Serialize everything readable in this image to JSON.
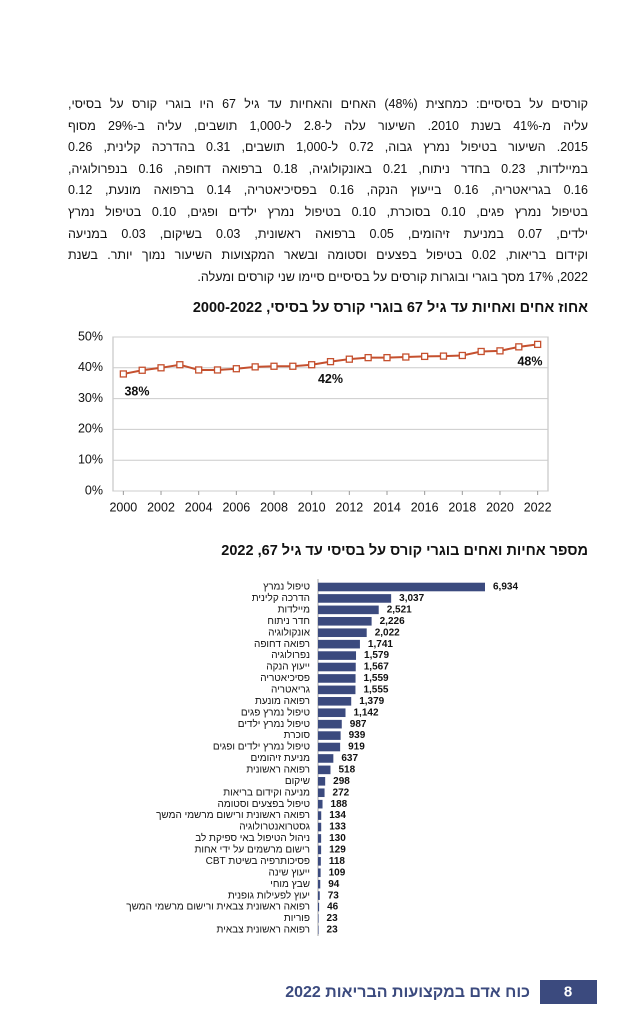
{
  "paragraph": [
    "קורסים על בסיסיים: כמחצית (48%) האחים והאחיות עד גיל 67 היו בוגרי קורס על בסיסי,",
    "עליה מ-41% בשנת 2010. השיעור עלה ל-2.8 ל-1,000 תושבים, עליה ב-29% מסוף",
    "2015. השיעור בטיפול נמרץ גבוה, 0.72 ל-1,000 תושבים, 0.31 בהדרכה קלינית, 0.26",
    "במיילדות, 0.23 בחדר ניתוח, 0.21 באונקולוגיה, 0.18 ברפואה דחופה, 0.16 בנפרולוגיה,",
    "0.16 בגריאטריה, 0.16 בייעוץ הנקה, 0.16 בפסיכיאטריה, 0.14 ברפואה מונעת, 0.12",
    "בטיפול נמרץ פגים, 0.10 בסוכרת, 0.10 בטיפול נמרץ ילדים ופגים, 0.10 בטיפול נמרץ",
    "ילדים, 0.07 במניעת זיהומים, 0.05 ברפואה ראשונית, 0.03 בשיקום, 0.03 במניעה",
    "וקידום בריאות, 0.02 בטיפול בפצעים וסטומה ובשאר המקצועות השיעור נמוך יותר. בשנת",
    "2022, 17% מסך בוגרי ובוגרות קורסים על בסיסיים סיימו שני קורסים ומעלה."
  ],
  "chart_data": [
    {
      "type": "line",
      "title": "אחוז אחים ואחיות עד גיל 67 בוגרי קורס על בסיסי, 2000-2022",
      "x": [
        2000,
        2001,
        2002,
        2003,
        2004,
        2005,
        2006,
        2007,
        2008,
        2009,
        2010,
        2011,
        2012,
        2013,
        2014,
        2015,
        2016,
        2017,
        2018,
        2019,
        2020,
        2021,
        2022
      ],
      "values": [
        38,
        39.2,
        40,
        41,
        39.3,
        39.3,
        39.7,
        40.3,
        40.5,
        40.5,
        41,
        42,
        42.8,
        43.3,
        43.3,
        43.5,
        43.7,
        43.8,
        44,
        45.3,
        45.5,
        46.8,
        47.6
      ],
      "value_labels": [
        "38%",
        null,
        null,
        null,
        null,
        null,
        null,
        null,
        null,
        null,
        null,
        "42%",
        null,
        null,
        null,
        null,
        null,
        null,
        null,
        null,
        null,
        null,
        "48%"
      ],
      "color": "#c5502e",
      "xlim": [
        1999.45,
        2022.55
      ],
      "xticks": [
        2000,
        2002,
        2004,
        2006,
        2008,
        2010,
        2012,
        2014,
        2016,
        2018,
        2020,
        2022
      ],
      "ylim": [
        0,
        50
      ],
      "yticks": [
        {
          "value": 0,
          "label": "0%"
        },
        {
          "value": 10,
          "label": "10%"
        },
        {
          "value": 20,
          "label": "20%"
        },
        {
          "value": 30,
          "label": "30%"
        },
        {
          "value": 40,
          "label": "40%"
        },
        {
          "value": 50,
          "label": "50%"
        }
      ]
    },
    {
      "type": "bar",
      "orientation": "horizontal",
      "title": "מספר אחיות ואחים בוגרי קורס על בסיסי עד גיל 67, 2022",
      "color": "#3b4a7e",
      "categories": [
        "טיפול נמרץ",
        "הדרכה קלינית",
        "מיילדות",
        "חדר ניתוח",
        "אונקולוגיה",
        "רפואה דחופה",
        "נפרולוגיה",
        "ייעוץ הנקה",
        "פסיכיאטריה",
        "גריאטריה",
        "רפואה מונעת",
        "טיפול נמרץ פגים",
        "טיפול נמרץ ילדים",
        "סוכרת",
        "טיפול נמרץ ילדים ופגים",
        "מניעת זיהומים",
        "רפואה ראשונית",
        "שיקום",
        "מניעה וקידום בריאות",
        "טיפול בפצעים וסטומה",
        "רפואה ראשונית ורישום מרשמי המשך",
        "גסטרואנטרולוגיה",
        "ניהול הטיפול באי ספיקת לב",
        "רישום מרשמים על ידי אחות",
        "פסיכותרפיה בשיטת CBT",
        "ייעוץ שינה",
        "שבץ מוחי",
        "יעוץ לפעילות גופנית",
        "רפואה ראשונית צבאית ורישום מרשמי המשך",
        "פוריות",
        "רפואה ראשונית צבאית"
      ],
      "values": [
        6934,
        3037,
        2521,
        2226,
        2022,
        1741,
        1579,
        1567,
        1559,
        1555,
        1379,
        1142,
        987,
        939,
        919,
        637,
        518,
        298,
        272,
        188,
        134,
        133,
        130,
        129,
        118,
        109,
        94,
        73,
        46,
        23,
        23
      ],
      "value_labels": [
        "6,934",
        "3,037",
        "2,521",
        "2,226",
        "2,022",
        "1,741",
        "1,579",
        "1,567",
        "1,559",
        "1,555",
        "1,379",
        "1,142",
        "987",
        "939",
        "919",
        "637",
        "518",
        "298",
        "272",
        "188",
        "134",
        "133",
        "130",
        "129",
        "118",
        "109",
        "94",
        "73",
        "46",
        "23",
        "23"
      ]
    }
  ],
  "footer": {
    "title": "כוח אדם במקצועות הבריאות 2022",
    "page": "8"
  }
}
